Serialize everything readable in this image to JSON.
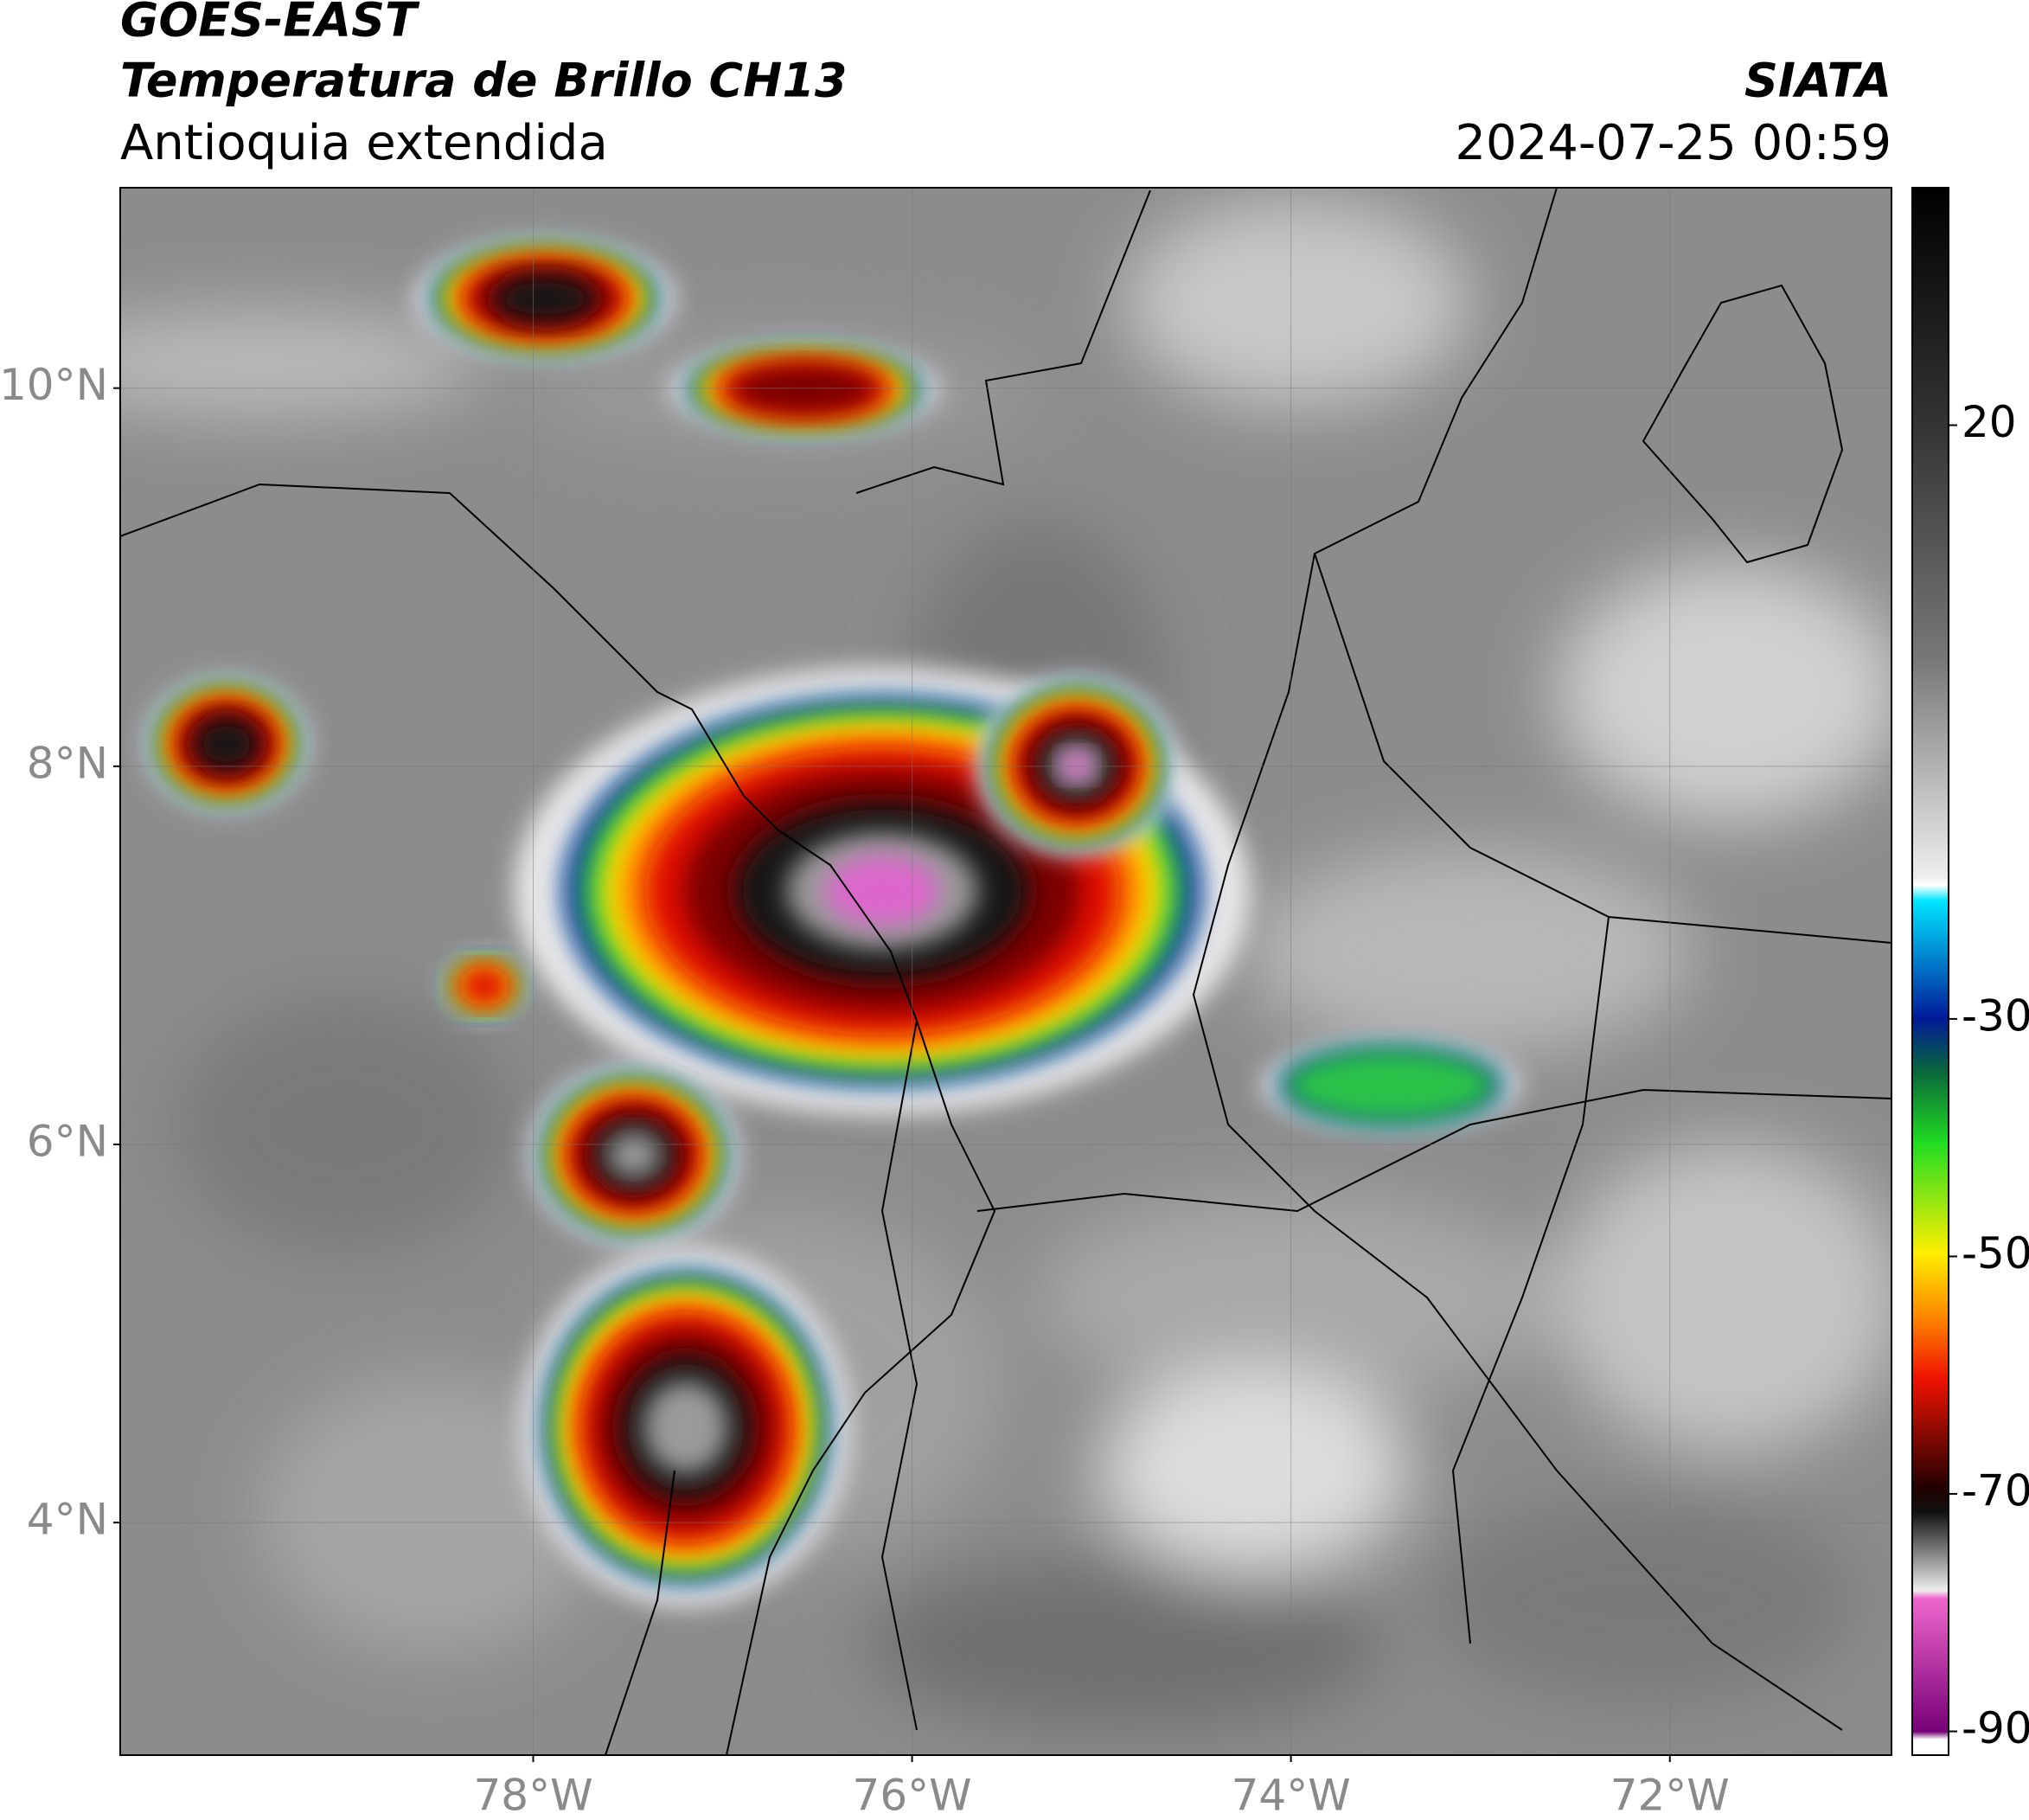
{
  "header": {
    "satellite": "GOES-EAST",
    "title": "Temperatura de Brillo CH13",
    "region": "Antioquia extendida",
    "agency": "SIATA",
    "timestamp": "2024-07-25 00:59"
  },
  "map": {
    "xlim": [
      -80.18,
      -70.83
    ],
    "ylim": [
      2.77,
      11.06
    ],
    "xticks": [
      {
        "value": -78,
        "label": "78°W"
      },
      {
        "value": -76,
        "label": "76°W"
      },
      {
        "value": -74,
        "label": "74°W"
      },
      {
        "value": -72,
        "label": "72°W"
      }
    ],
    "yticks": [
      {
        "value": 4,
        "label": "4°N"
      },
      {
        "value": 6,
        "label": "6°N"
      },
      {
        "value": 8,
        "label": "8°N"
      },
      {
        "value": 10,
        "label": "10°N"
      }
    ],
    "grid": true
  },
  "colorbar": {
    "ylim": [
      -92,
      40
    ],
    "ticks": [
      20,
      -30,
      -50,
      -70,
      -90
    ]
  }
}
